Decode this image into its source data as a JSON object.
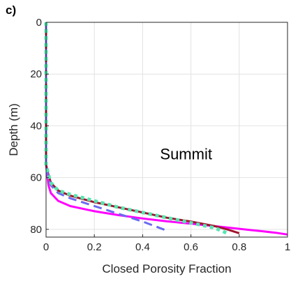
{
  "panel_label": "c)",
  "chart_data": {
    "type": "line",
    "title": "",
    "xlabel": "Closed Porosity Fraction",
    "ylabel": "Depth (m)",
    "xlim": [
      0,
      1
    ],
    "ylim": [
      0,
      83
    ],
    "y_reversed": true,
    "grid": true,
    "legend": "none",
    "annotations": [
      {
        "text": "Summit",
        "x": 0.58,
        "y": 53
      }
    ],
    "xticks": [
      0,
      0.2,
      0.4,
      0.6,
      0.8,
      1
    ],
    "xtick_labels": [
      "0",
      "0.2",
      "0.4",
      "0.6",
      "0.8",
      "1"
    ],
    "yticks": [
      0,
      20,
      40,
      60,
      80
    ],
    "ytick_labels": [
      "0",
      "20",
      "40",
      "60",
      "80"
    ],
    "series": [
      {
        "style": "solid",
        "color": "#ff00ff",
        "width": 3,
        "x": [
          0,
          0,
          0.01,
          0.02,
          0.05,
          0.1,
          0.2,
          0.3,
          0.4,
          0.5,
          0.6,
          0.7,
          0.8,
          0.85,
          0.9,
          0.95,
          1.0
        ],
        "y": [
          0,
          55,
          63,
          66,
          69,
          71,
          73,
          74.5,
          75.8,
          76.9,
          77.8,
          78.8,
          79.8,
          80.3,
          80.8,
          81.3,
          82
        ]
      },
      {
        "style": "solid",
        "color": "#a2142f",
        "width": 3,
        "x": [
          0,
          0,
          0.01,
          0.02,
          0.05,
          0.1,
          0.2,
          0.3,
          0.4,
          0.5,
          0.6,
          0.7,
          0.75,
          0.8
        ],
        "y": [
          0,
          55,
          59,
          62,
          65,
          67,
          69.5,
          71.5,
          73.5,
          75.5,
          77,
          78.8,
          80,
          81.5
        ]
      },
      {
        "style": "dashed",
        "color": "#6a6af0",
        "width": 3,
        "x": [
          0,
          0,
          0.01,
          0.02,
          0.05,
          0.1,
          0.2,
          0.3,
          0.4,
          0.5
        ],
        "y": [
          0,
          55,
          60,
          63,
          66,
          68,
          71,
          74,
          77,
          80.5
        ]
      },
      {
        "style": "dotted",
        "color": "#55e6b0",
        "width": 5,
        "x": [
          0,
          0,
          0.01,
          0.02,
          0.05,
          0.1,
          0.2,
          0.3,
          0.4,
          0.5,
          0.6,
          0.7,
          0.75
        ],
        "y": [
          0,
          55,
          59,
          62,
          65,
          66.5,
          69,
          71.5,
          73.5,
          75.5,
          77.5,
          79.5,
          81.5
        ]
      }
    ]
  }
}
